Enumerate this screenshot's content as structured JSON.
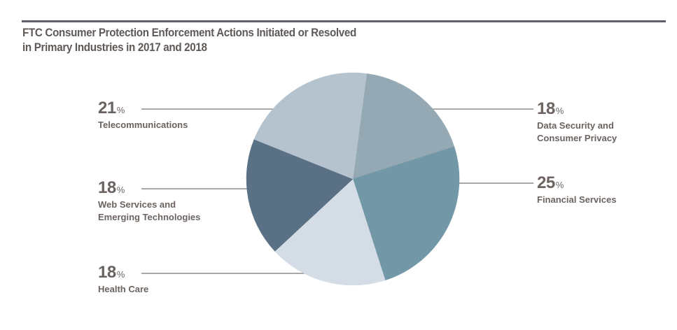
{
  "chart_data": {
    "type": "pie",
    "title": "FTC Consumer Protection Enforcement Actions Initiated or Resolved in Primary Industries in 2017 and 2018",
    "title_lines": [
      "FTC Consumer Protection Enforcement Actions Initiated or Resolved",
      "in Primary Industries in 2017 and 2018"
    ],
    "unit": "%",
    "slices": [
      {
        "label": "Data Security and Consumer Privacy",
        "label_lines": [
          "Data Security and",
          "Consumer Privacy"
        ],
        "value": 18,
        "color": "#94a9b4"
      },
      {
        "label": "Financial Services",
        "label_lines": [
          "Financial Services"
        ],
        "value": 25,
        "color": "#7297a7"
      },
      {
        "label": "Health Care",
        "label_lines": [
          "Health Care"
        ],
        "value": 18,
        "color": "#d4dde6"
      },
      {
        "label": "Web Services and Emerging Technologies",
        "label_lines": [
          "Web Services and",
          "Emerging Technologies"
        ],
        "value": 18,
        "color": "#5a7084"
      },
      {
        "label": "Telecommunications",
        "label_lines": [
          "Telecommunications"
        ],
        "value": 21,
        "color": "#b4c3ce"
      }
    ],
    "start_angle_deg": 7.5,
    "direction": "clockwise",
    "legend": "none"
  },
  "colors": {
    "text": "#6b6360",
    "leader_line": "#8f8a88",
    "rule": "#5d6066"
  }
}
